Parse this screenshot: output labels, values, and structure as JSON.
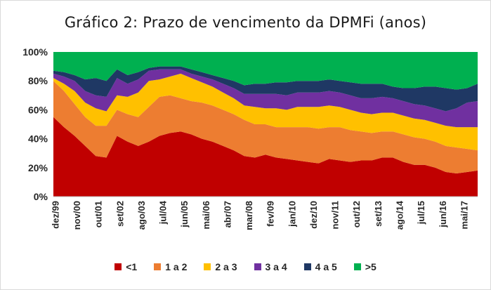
{
  "chart_data": {
    "type": "area",
    "stacked": true,
    "title": "Gráfico 2: Prazo de vencimento da DPMFi (anos)",
    "xlabel": "",
    "ylabel": "",
    "ylim": [
      0,
      100
    ],
    "y_ticks": [
      "0%",
      "20%",
      "40%",
      "60%",
      "80%",
      "100%"
    ],
    "x_tick_labels": [
      "dez/99",
      "nov/00",
      "out/01",
      "set/02",
      "ago/03",
      "jul/04",
      "jun/05",
      "mai/06",
      "abr/07",
      "mar/08",
      "fev/09",
      "jan/10",
      "dez/10",
      "nov/11",
      "out/12",
      "set/13",
      "ago/14",
      "jul/15",
      "jun/16",
      "mai/17"
    ],
    "x": [
      "dez/99",
      "jun/00",
      "nov/00",
      "mai/01",
      "out/01",
      "abr/02",
      "set/02",
      "mar/03",
      "ago/03",
      "fev/04",
      "jul/04",
      "jan/05",
      "jun/05",
      "dez/05",
      "mai/06",
      "nov/06",
      "abr/07",
      "out/07",
      "mar/08",
      "set/08",
      "fev/09",
      "ago/09",
      "jan/10",
      "jul/10",
      "dez/10",
      "jun/11",
      "nov/11",
      "mai/12",
      "out/12",
      "abr/13",
      "set/13",
      "mar/14",
      "ago/14",
      "fev/15",
      "jul/15",
      "jan/16",
      "jun/16",
      "dez/16",
      "mai/17",
      "nov/17",
      "mar/18"
    ],
    "series": [
      {
        "name": "<1",
        "color": "#c00000",
        "values": [
          55,
          48,
          42,
          35,
          28,
          27,
          42,
          38,
          35,
          38,
          42,
          44,
          45,
          43,
          40,
          38,
          35,
          32,
          28,
          27,
          29,
          27,
          26,
          25,
          24,
          23,
          26,
          25,
          24,
          25,
          25,
          27,
          27,
          24,
          22,
          22,
          20,
          17,
          16,
          17,
          18
        ]
      },
      {
        "name": "1 a 2",
        "color": "#ed7d31",
        "values": [
          25,
          25,
          22,
          20,
          21,
          22,
          18,
          19,
          20,
          24,
          27,
          26,
          23,
          23,
          25,
          25,
          25,
          25,
          25,
          23,
          21,
          21,
          22,
          23,
          24,
          24,
          22,
          23,
          22,
          20,
          19,
          18,
          18,
          19,
          19,
          18,
          18,
          18,
          18,
          16,
          14
        ]
      },
      {
        "name": "2 a 3",
        "color": "#ffc000",
        "values": [
          2,
          5,
          9,
          10,
          12,
          10,
          10,
          12,
          17,
          18,
          12,
          13,
          17,
          16,
          14,
          13,
          12,
          11,
          10,
          12,
          11,
          13,
          12,
          14,
          14,
          15,
          15,
          14,
          14,
          13,
          13,
          13,
          13,
          13,
          13,
          13,
          13,
          14,
          14,
          15,
          16
        ]
      },
      {
        "name": "3 a 4",
        "color": "#7030a0",
        "values": [
          3,
          5,
          7,
          8,
          9,
          10,
          12,
          9,
          9,
          7,
          7,
          5,
          3,
          3,
          4,
          5,
          6,
          7,
          8,
          9,
          10,
          10,
          10,
          10,
          10,
          10,
          10,
          10,
          10,
          10,
          11,
          11,
          10,
          10,
          10,
          10,
          10,
          10,
          13,
          17,
          18
        ]
      },
      {
        "name": "4 a 5",
        "color": "#1f3864",
        "values": [
          2,
          3,
          4,
          8,
          12,
          11,
          6,
          6,
          5,
          2,
          2,
          2,
          2,
          3,
          3,
          3,
          4,
          5,
          6,
          7,
          7,
          8,
          9,
          8,
          8,
          8,
          8,
          8,
          9,
          10,
          10,
          9,
          8,
          9,
          11,
          13,
          15,
          16,
          13,
          10,
          12
        ]
      },
      {
        "name": ">5",
        "color": "#00b050",
        "values": [
          13,
          14,
          16,
          19,
          18,
          20,
          12,
          16,
          14,
          11,
          10,
          10,
          10,
          12,
          14,
          16,
          18,
          20,
          23,
          22,
          22,
          21,
          21,
          20,
          20,
          20,
          19,
          20,
          21,
          22,
          22,
          22,
          24,
          25,
          25,
          24,
          24,
          25,
          26,
          25,
          22
        ]
      }
    ]
  }
}
